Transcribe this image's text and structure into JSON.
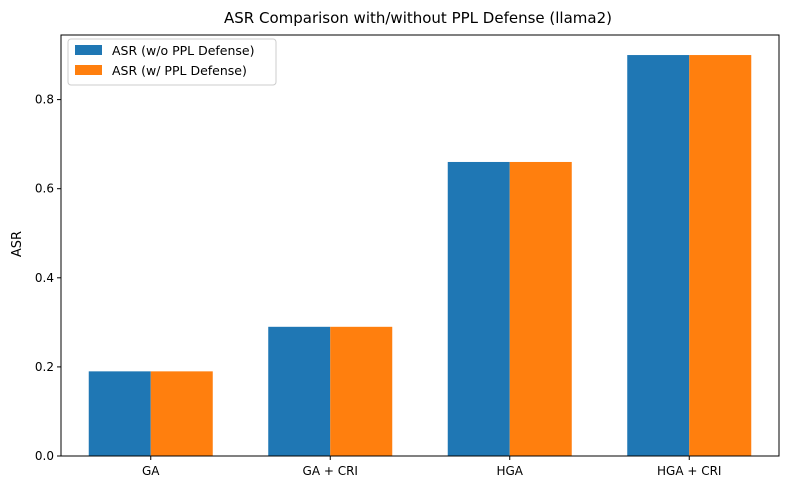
{
  "chart_data": {
    "type": "bar",
    "title": "ASR Comparison with/without PPL Defense (llama2)",
    "xlabel": "",
    "ylabel": "ASR",
    "categories": [
      "GA",
      "GA + CRI",
      "HGA",
      "HGA + CRI"
    ],
    "series": [
      {
        "name": "ASR (w/o PPL Defense)",
        "values": [
          0.19,
          0.29,
          0.66,
          0.9
        ],
        "color": "#1f77b4"
      },
      {
        "name": "ASR (w/ PPL Defense)",
        "values": [
          0.19,
          0.29,
          0.66,
          0.9
        ],
        "color": "#ff7f0e"
      }
    ],
    "ylim": [
      0,
      0.945
    ],
    "yticks": [
      "0.0",
      "0.2",
      "0.4",
      "0.6",
      "0.8"
    ],
    "grid": false,
    "legend_position": "top-left"
  }
}
